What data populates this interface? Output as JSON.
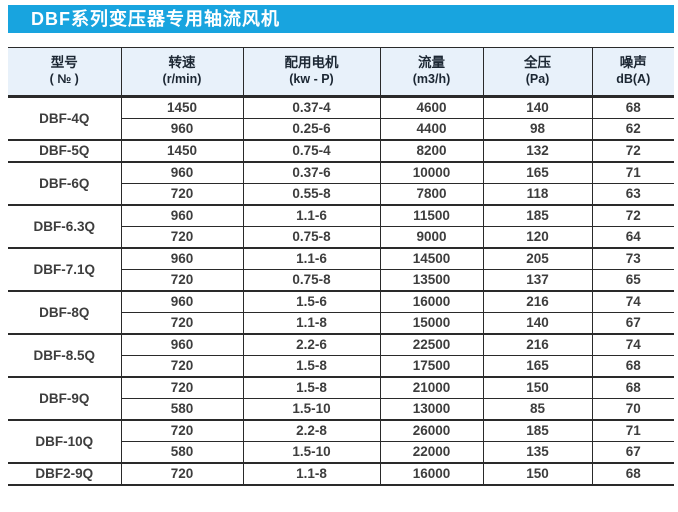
{
  "title": "DBF系列变压器专用轴流风机",
  "colors": {
    "title_bar_bg": "#18a4df",
    "title_text": "#ffffff",
    "header_bg": "#e8f1fa",
    "header_text": "#1c2733",
    "body_text": "#3d3d3d",
    "line": "#2a2a2a"
  },
  "table": {
    "headers": [
      {
        "line1": "型号",
        "line2": "( № )"
      },
      {
        "line1": "转速",
        "line2": "(r/min)"
      },
      {
        "line1": "配用电机",
        "line2": "(kw - P)"
      },
      {
        "line1": "流量",
        "line2": "(m3/h)"
      },
      {
        "line1": "全压",
        "line2": "(Pa)"
      },
      {
        "line1": "噪声",
        "line2": "dB(A)"
      }
    ],
    "groups": [
      {
        "model": "DBF-4Q",
        "rows": [
          [
            "1450",
            "0.37-4",
            "4600",
            "140",
            "68"
          ],
          [
            "960",
            "0.25-6",
            "4400",
            "98",
            "62"
          ]
        ]
      },
      {
        "model": "DBF-5Q",
        "rows": [
          [
            "1450",
            "0.75-4",
            "8200",
            "132",
            "72"
          ]
        ]
      },
      {
        "model": "DBF-6Q",
        "rows": [
          [
            "960",
            "0.37-6",
            "10000",
            "165",
            "71"
          ],
          [
            "720",
            "0.55-8",
            "7800",
            "118",
            "63"
          ]
        ]
      },
      {
        "model": "DBF-6.3Q",
        "rows": [
          [
            "960",
            "1.1-6",
            "11500",
            "185",
            "72"
          ],
          [
            "720",
            "0.75-8",
            "9000",
            "120",
            "64"
          ]
        ]
      },
      {
        "model": "DBF-7.1Q",
        "rows": [
          [
            "960",
            "1.1-6",
            "14500",
            "205",
            "73"
          ],
          [
            "720",
            "0.75-8",
            "13500",
            "137",
            "65"
          ]
        ]
      },
      {
        "model": "DBF-8Q",
        "rows": [
          [
            "960",
            "1.5-6",
            "16000",
            "216",
            "74"
          ],
          [
            "720",
            "1.1-8",
            "15000",
            "140",
            "67"
          ]
        ]
      },
      {
        "model": "DBF-8.5Q",
        "rows": [
          [
            "960",
            "2.2-6",
            "22500",
            "216",
            "74"
          ],
          [
            "720",
            "1.5-8",
            "17500",
            "165",
            "68"
          ]
        ]
      },
      {
        "model": "DBF-9Q",
        "rows": [
          [
            "720",
            "1.5-8",
            "21000",
            "150",
            "68"
          ],
          [
            "580",
            "1.5-10",
            "13000",
            "85",
            "70"
          ]
        ]
      },
      {
        "model": "DBF-10Q",
        "rows": [
          [
            "720",
            "2.2-8",
            "26000",
            "185",
            "71"
          ],
          [
            "580",
            "1.5-10",
            "22000",
            "135",
            "67"
          ]
        ]
      },
      {
        "model": "DBF2-9Q",
        "rows": [
          [
            "720",
            "1.1-8",
            "16000",
            "150",
            "68"
          ]
        ]
      }
    ]
  }
}
